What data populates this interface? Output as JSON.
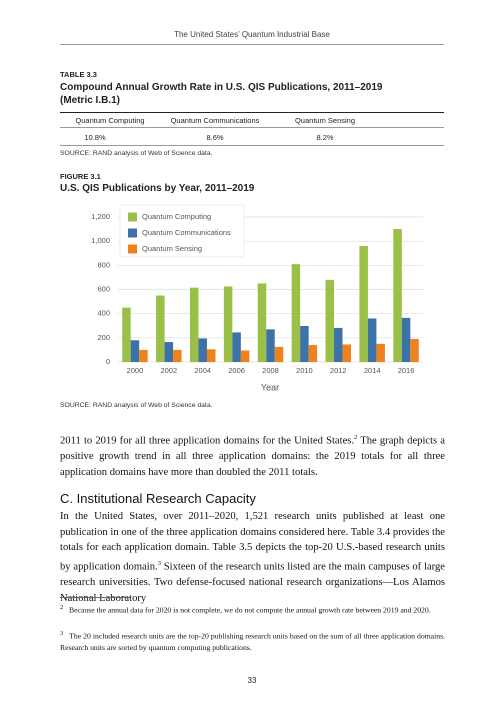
{
  "header": {
    "running_title": "The United States’ Quantum Industrial Base"
  },
  "table": {
    "label": "TABLE 3.3",
    "title": "Compound Annual Growth Rate in U.S. QIS Publications, 2011–2019 (Metric I.B.1)",
    "columns": [
      "Quantum Computing",
      "Quantum Communications",
      "Quantum Sensing"
    ],
    "rows": [
      [
        "10.8%",
        "8.6%",
        "8.2%"
      ]
    ],
    "source": "SOURCE: RAND analysis of Web of Science data."
  },
  "figure": {
    "label": "FIGURE 3.1",
    "source": "SOURCE: RAND analysis of Web of Science data."
  },
  "chart_data": {
    "type": "bar",
    "title": "U.S. QIS Publications by Year, 2011–2019",
    "xlabel": "Year",
    "categories": [
      "2000",
      "2002",
      "2004",
      "2006",
      "2008",
      "2010",
      "2012",
      "2014",
      "2016"
    ],
    "series": [
      {
        "name": "Quantum Computing",
        "color": "#9bc04a",
        "values": [
          450,
          550,
          615,
          625,
          650,
          810,
          680,
          960,
          1100
        ]
      },
      {
        "name": "Quantum Communications",
        "color": "#3d72a8",
        "values": [
          180,
          165,
          195,
          245,
          270,
          298,
          282,
          360,
          365
        ]
      },
      {
        "name": "Quantum Sensing",
        "color": "#f0821e",
        "values": [
          100,
          100,
          105,
          95,
          125,
          140,
          145,
          150,
          190
        ]
      }
    ],
    "ylim": [
      0,
      1200
    ],
    "yticks": [
      0,
      200,
      400,
      600,
      800,
      {
        "value": 1000,
        "label": "1,000"
      },
      {
        "value": 1200,
        "label": "1,200"
      }
    ],
    "grid": true,
    "legend": "upper left"
  },
  "body": {
    "paragraph1": [
      "2011 to 2019 for all three application domains for the United States.",
      "2",
      " The graph depicts a positive growth trend in all three application domains: the 2019 totals for all three application domains have more than doubled the 2011 totals."
    ],
    "heading": "C. Institutional Research Capacity",
    "paragraph2": [
      "In the United States, over 2011–2020, 1,521 research units published at least one publication in one of the three application domains considered here. Table 3.4 provides the totals for each application domain. Table 3.5 depicts the top-20 U.S.-based research units by application domain.",
      "3",
      " Sixteen of the research units listed are the main campuses of large research universities. Two defense-focused national research organizations—Los Alamos National Laboratory"
    ]
  },
  "footnotes": [
    {
      "number": "2",
      "text": "Because the annual data for 2020 is not complete, we do not compute the annual growth rate between 2019 and 2020."
    },
    {
      "number": "3",
      "text": "The 20 included research units are the top-20 publishing research units based on the sum of all three application domains. Research units are sorted by quantum computing publications."
    }
  ],
  "page_number": "33"
}
